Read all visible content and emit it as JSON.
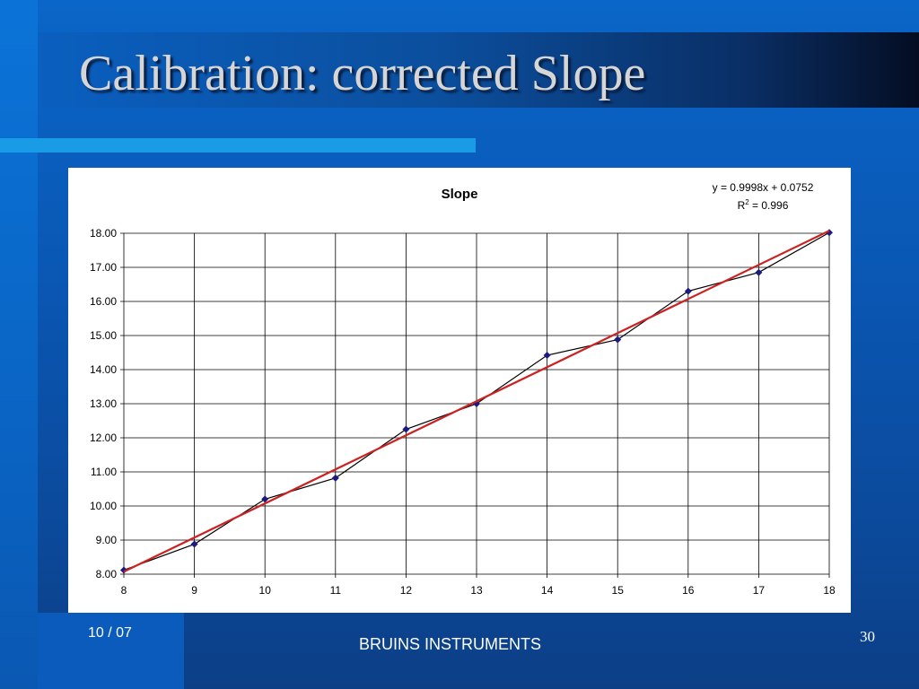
{
  "slide": {
    "title": "Calibration: corrected Slope",
    "footer_date": "10 / 07",
    "footer_company": "BRUINS INSTRUMENTS",
    "page_number": "30"
  },
  "colors": {
    "data_line": "#000000",
    "marker": "#1a1a80",
    "trend_line": "#cc2222",
    "grid": "#000000"
  },
  "chart_data": {
    "type": "line",
    "title": "Slope",
    "xlabel": "",
    "ylabel": "",
    "x_ticks": [
      8,
      9,
      10,
      11,
      12,
      13,
      14,
      15,
      16,
      17,
      18
    ],
    "y_ticks": [
      "8.00",
      "9.00",
      "10.00",
      "11.00",
      "12.00",
      "13.00",
      "14.00",
      "15.00",
      "16.00",
      "17.00",
      "18.00"
    ],
    "xlim": [
      8,
      18
    ],
    "ylim": [
      8,
      18
    ],
    "grid": true,
    "series": [
      {
        "x": [
          8,
          9,
          10,
          11,
          12,
          13,
          14,
          15,
          16,
          17,
          18
        ],
        "y": [
          8.12,
          8.88,
          10.2,
          10.82,
          12.25,
          13.0,
          14.42,
          14.88,
          16.3,
          16.85,
          18.02
        ]
      }
    ],
    "trendline": {
      "slope": 0.9998,
      "intercept": 0.0752,
      "equation": "y = 0.9998x + 0.0752",
      "r2_prefix": "R",
      "r2_sup": "2",
      "r2_suffix": " = 0.996"
    }
  }
}
